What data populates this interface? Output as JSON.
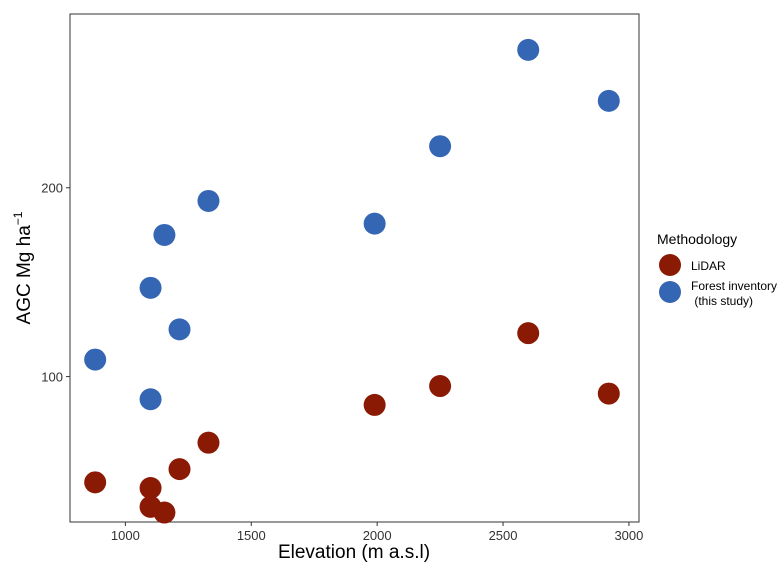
{
  "chart_data": {
    "type": "scatter",
    "xlabel": "Elevation (m a.s.l)",
    "ylabel": "AGC Mg ha",
    "ylabel_superscript": "−1",
    "xlim": [
      780,
      3040
    ],
    "ylim": [
      23,
      292
    ],
    "xticks": [
      1000,
      1500,
      2000,
      2500,
      3000
    ],
    "yticks": [
      100,
      200
    ],
    "grid": false,
    "legend": {
      "title": "Methodology",
      "placement": "right",
      "entries": [
        {
          "label": "LiDAR",
          "color": "#8B1A05"
        },
        {
          "label": "Forest inventory",
          "label_line2": " (this study)",
          "color": "#3566B4"
        }
      ]
    },
    "series": [
      {
        "name": "LiDAR",
        "color": "#8B1A05",
        "points": [
          {
            "x": 880,
            "y": 44
          },
          {
            "x": 1100,
            "y": 41
          },
          {
            "x": 1100,
            "y": 31
          },
          {
            "x": 1155,
            "y": 28
          },
          {
            "x": 1215,
            "y": 51
          },
          {
            "x": 1330,
            "y": 65
          },
          {
            "x": 1990,
            "y": 85
          },
          {
            "x": 2250,
            "y": 95
          },
          {
            "x": 2600,
            "y": 123
          },
          {
            "x": 2920,
            "y": 91
          }
        ]
      },
      {
        "name": "Forest inventory",
        "color": "#3566B4",
        "points": [
          {
            "x": 880,
            "y": 109
          },
          {
            "x": 1100,
            "y": 88
          },
          {
            "x": 1100,
            "y": 147
          },
          {
            "x": 1155,
            "y": 175
          },
          {
            "x": 1215,
            "y": 125
          },
          {
            "x": 1330,
            "y": 193
          },
          {
            "x": 1990,
            "y": 181
          },
          {
            "x": 2250,
            "y": 222
          },
          {
            "x": 2600,
            "y": 273
          },
          {
            "x": 2920,
            "y": 246
          }
        ]
      }
    ]
  }
}
